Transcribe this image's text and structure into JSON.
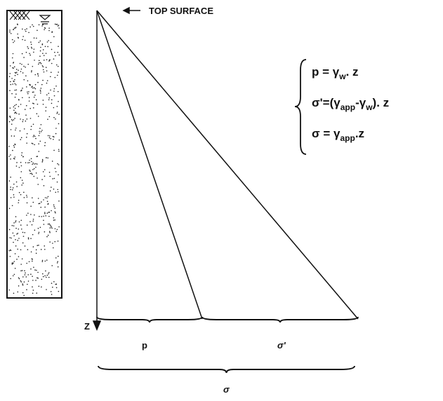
{
  "top_label": "TOP SURFACE",
  "equations": [
    [
      {
        "text": "p = γ"
      },
      {
        "sub": "w"
      },
      {
        "text": ". z"
      }
    ],
    [
      {
        "text": "σ'=(γ"
      },
      {
        "sub": "app"
      },
      {
        "text": "-γ"
      },
      {
        "sub": "w"
      },
      {
        "text": "). z"
      }
    ],
    [
      {
        "text": "σ =  γ"
      },
      {
        "sub": "app"
      },
      {
        "text": ".z"
      }
    ]
  ],
  "axis_label": "Z",
  "p_label": "p",
  "sigma_eff_label": "σ'",
  "sigma_label": "σ"
}
